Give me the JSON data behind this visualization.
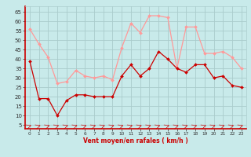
{
  "x": [
    0,
    1,
    2,
    3,
    4,
    5,
    6,
    7,
    8,
    9,
    10,
    11,
    12,
    13,
    14,
    15,
    16,
    17,
    18,
    19,
    20,
    21,
    22,
    23
  ],
  "vent_moyen": [
    39,
    19,
    19,
    10,
    18,
    21,
    21,
    20,
    20,
    20,
    31,
    37,
    31,
    35,
    44,
    40,
    35,
    33,
    37,
    37,
    30,
    31,
    26,
    25
  ],
  "en_rafales": [
    56,
    48,
    41,
    27,
    28,
    34,
    31,
    30,
    31,
    29,
    46,
    59,
    54,
    63,
    63,
    62,
    35,
    57,
    57,
    43,
    43,
    44,
    41,
    35
  ],
  "color_moyen": "#cc0000",
  "color_rafales": "#ff9999",
  "bg_color": "#c8eaea",
  "grid_color": "#aacccc",
  "xlabel": "Vent moyen/en rafales ( km/h )",
  "ylabel_ticks": [
    5,
    10,
    15,
    20,
    25,
    30,
    35,
    40,
    45,
    50,
    55,
    60,
    65
  ],
  "ylim": [
    3,
    68
  ],
  "xlim": [
    -0.5,
    23.5
  ]
}
